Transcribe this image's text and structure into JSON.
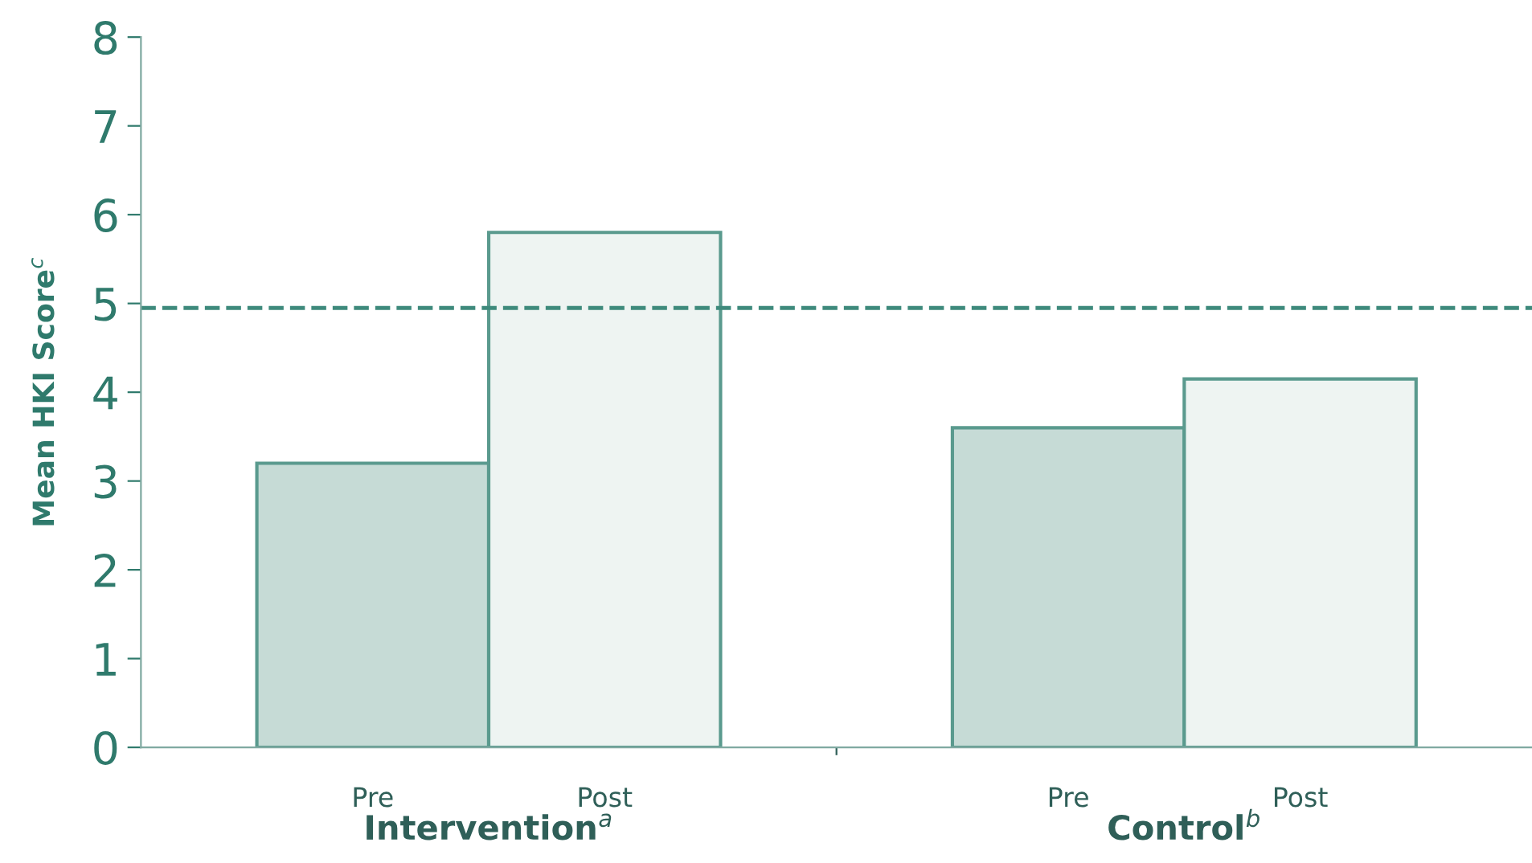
{
  "chart_data": {
    "type": "bar",
    "ylabel": "Mean HKI Score$^{c}$",
    "categories": [
      "Pre",
      "Post",
      null,
      "Pre",
      "Post"
    ],
    "values": [
      3.2,
      5.8,
      null,
      3.6,
      4.15
    ],
    "colors": [
      "#c6dbd6",
      "#eef4f2",
      "#c6dbd6",
      "#c6dbd6",
      "#eef4f2"
    ],
    "ylim": [
      0,
      8
    ],
    "yticks": [
      0,
      1,
      2,
      3,
      4,
      5,
      6,
      7,
      8
    ],
    "ref_lines": [
      {
        "axis": "y",
        "value": 4.95,
        "color": "#3e8a7c",
        "line_style": "dashed"
      }
    ],
    "annotations": [
      "Intervention$^{a}$",
      "Control$^{b}$"
    ],
    "grid": false,
    "legend": false
  }
}
